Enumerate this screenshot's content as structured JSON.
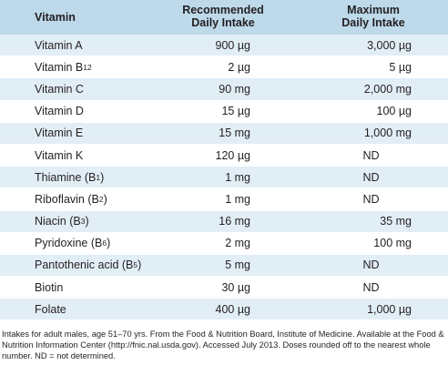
{
  "table": {
    "headers": {
      "vitamin": "Vitamin",
      "rdi_line1": "Recommended",
      "rdi_line2": "Daily Intake",
      "max_line1": "Maximum",
      "max_line2": "Daily Intake"
    },
    "rows": [
      {
        "name": "Vitamin A",
        "sub": "",
        "suffix": "",
        "rdi": "900 µg",
        "max": "3,000 µg"
      },
      {
        "name": "Vitamin B",
        "sub": "12",
        "suffix": "",
        "rdi": "2 µg",
        "max": "5 µg"
      },
      {
        "name": "Vitamin C",
        "sub": "",
        "suffix": "",
        "rdi": "90 mg",
        "max": "2,000 mg"
      },
      {
        "name": "Vitamin D",
        "sub": "",
        "suffix": "",
        "rdi": "15 µg",
        "max": "100 µg"
      },
      {
        "name": "Vitamin E",
        "sub": "",
        "suffix": "",
        "rdi": "15 mg",
        "max": "1,000 mg"
      },
      {
        "name": "Vitamin K",
        "sub": "",
        "suffix": "",
        "rdi": "120 µg",
        "max": "ND"
      },
      {
        "name": "Thiamine (B",
        "sub": "1",
        "suffix": ")",
        "rdi": "1 mg",
        "max": "ND"
      },
      {
        "name": "Riboflavin (B",
        "sub": "2",
        "suffix": ")",
        "rdi": "1 mg",
        "max": "ND"
      },
      {
        "name": "Niacin (B",
        "sub": "3",
        "suffix": ")",
        "rdi": "16 mg",
        "max": "35 mg"
      },
      {
        "name": "Pyridoxine (B",
        "sub": "6",
        "suffix": ")",
        "rdi": "2 mg",
        "max": "100 mg"
      },
      {
        "name": "Pantothenic acid (B",
        "sub": "5",
        "suffix": ")",
        "rdi": "5 mg",
        "max": "ND"
      },
      {
        "name": "Biotin",
        "sub": "",
        "suffix": "",
        "rdi": "30 µg",
        "max": "ND"
      },
      {
        "name": "Folate",
        "sub": "",
        "suffix": "",
        "rdi": "400 µg",
        "max": "1,000 µg"
      }
    ]
  },
  "footnote": "Intakes for adult males, age 51–70 yrs. From the Food & Nutrition Board, Institute of Medicine. Available at the Food & Nutrition Information Center (http://fnic.nal.usda.gov). Accessed July 2013. Doses rounded off to the nearest whole number. ND = not determined.",
  "colors": {
    "header_bg": "#bdd9ea",
    "stripe_bg": "#e2eef6",
    "text": "#231f20"
  }
}
